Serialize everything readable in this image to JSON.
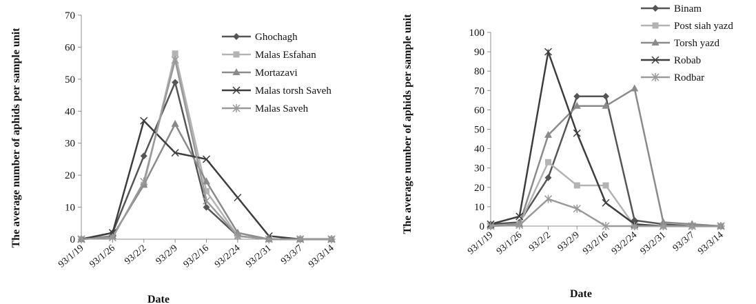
{
  "chart_data": [
    {
      "type": "line",
      "xlabel": "Date",
      "ylabel": "The average number of aphids per sample unit",
      "ylim": [
        0,
        70
      ],
      "yticks": [
        0,
        10,
        20,
        30,
        40,
        50,
        60,
        70
      ],
      "categories": [
        "93/1/19",
        "93/1/26",
        "93/2/2",
        "93/2/9",
        "93/2/16",
        "93/2/24",
        "93/2/31",
        "93/3/7",
        "93/3/14"
      ],
      "legend_position": "top-right",
      "grid": false,
      "series": [
        {
          "name": "Ghochagh",
          "values": [
            0,
            2,
            26,
            49,
            10,
            1,
            0,
            0,
            0
          ],
          "color": "#555555",
          "marker": "diamond"
        },
        {
          "name": "Malas Esfahan",
          "values": [
            0,
            1,
            17,
            58,
            15,
            1,
            0,
            0,
            0
          ],
          "color": "#b3b3b3",
          "marker": "square"
        },
        {
          "name": "Mortazavi",
          "values": [
            0,
            1,
            17,
            36,
            18,
            2,
            0,
            0,
            0
          ],
          "color": "#8a8a8a",
          "marker": "triangle"
        },
        {
          "name": "Malas torsh Saveh",
          "values": [
            0,
            2,
            37,
            27,
            25,
            13,
            1,
            0,
            0
          ],
          "color": "#3d3d3d",
          "marker": "x"
        },
        {
          "name": "Malas Saveh",
          "values": [
            0,
            0.5,
            18,
            56,
            12,
            1,
            0,
            0,
            0
          ],
          "color": "#999999",
          "marker": "star"
        }
      ]
    },
    {
      "type": "line",
      "xlabel": "Date",
      "ylabel": "The average number of aphids per sample unit",
      "ylim": [
        0,
        100
      ],
      "yticks": [
        0,
        10,
        20,
        30,
        40,
        50,
        60,
        70,
        80,
        90,
        100
      ],
      "categories": [
        "93/1/19",
        "93/1/26",
        "93/2/2",
        "93/2/9",
        "93/2/16",
        "93/2/24",
        "93/2/31",
        "93/3/7",
        "93/3/14"
      ],
      "legend_position": "top-right",
      "grid": false,
      "series": [
        {
          "name": "Binam",
          "values": [
            1,
            2,
            25,
            67,
            67,
            3,
            1,
            0,
            0
          ],
          "color": "#555555",
          "marker": "diamond"
        },
        {
          "name": "Post siah yazd",
          "values": [
            0,
            1,
            33,
            21,
            21,
            0,
            0,
            0,
            0
          ],
          "color": "#b3b3b3",
          "marker": "square"
        },
        {
          "name": "Torsh yazd",
          "values": [
            0,
            1,
            47,
            62,
            62,
            71,
            2,
            1,
            0
          ],
          "color": "#8a8a8a",
          "marker": "triangle"
        },
        {
          "name": "Robab",
          "values": [
            1,
            5,
            90,
            48,
            12,
            1,
            0,
            0,
            0
          ],
          "color": "#3d3d3d",
          "marker": "x"
        },
        {
          "name": "Rodbar",
          "values": [
            0,
            0.5,
            14,
            9,
            0,
            0,
            0,
            0,
            0
          ],
          "color": "#999999",
          "marker": "star"
        }
      ]
    }
  ]
}
